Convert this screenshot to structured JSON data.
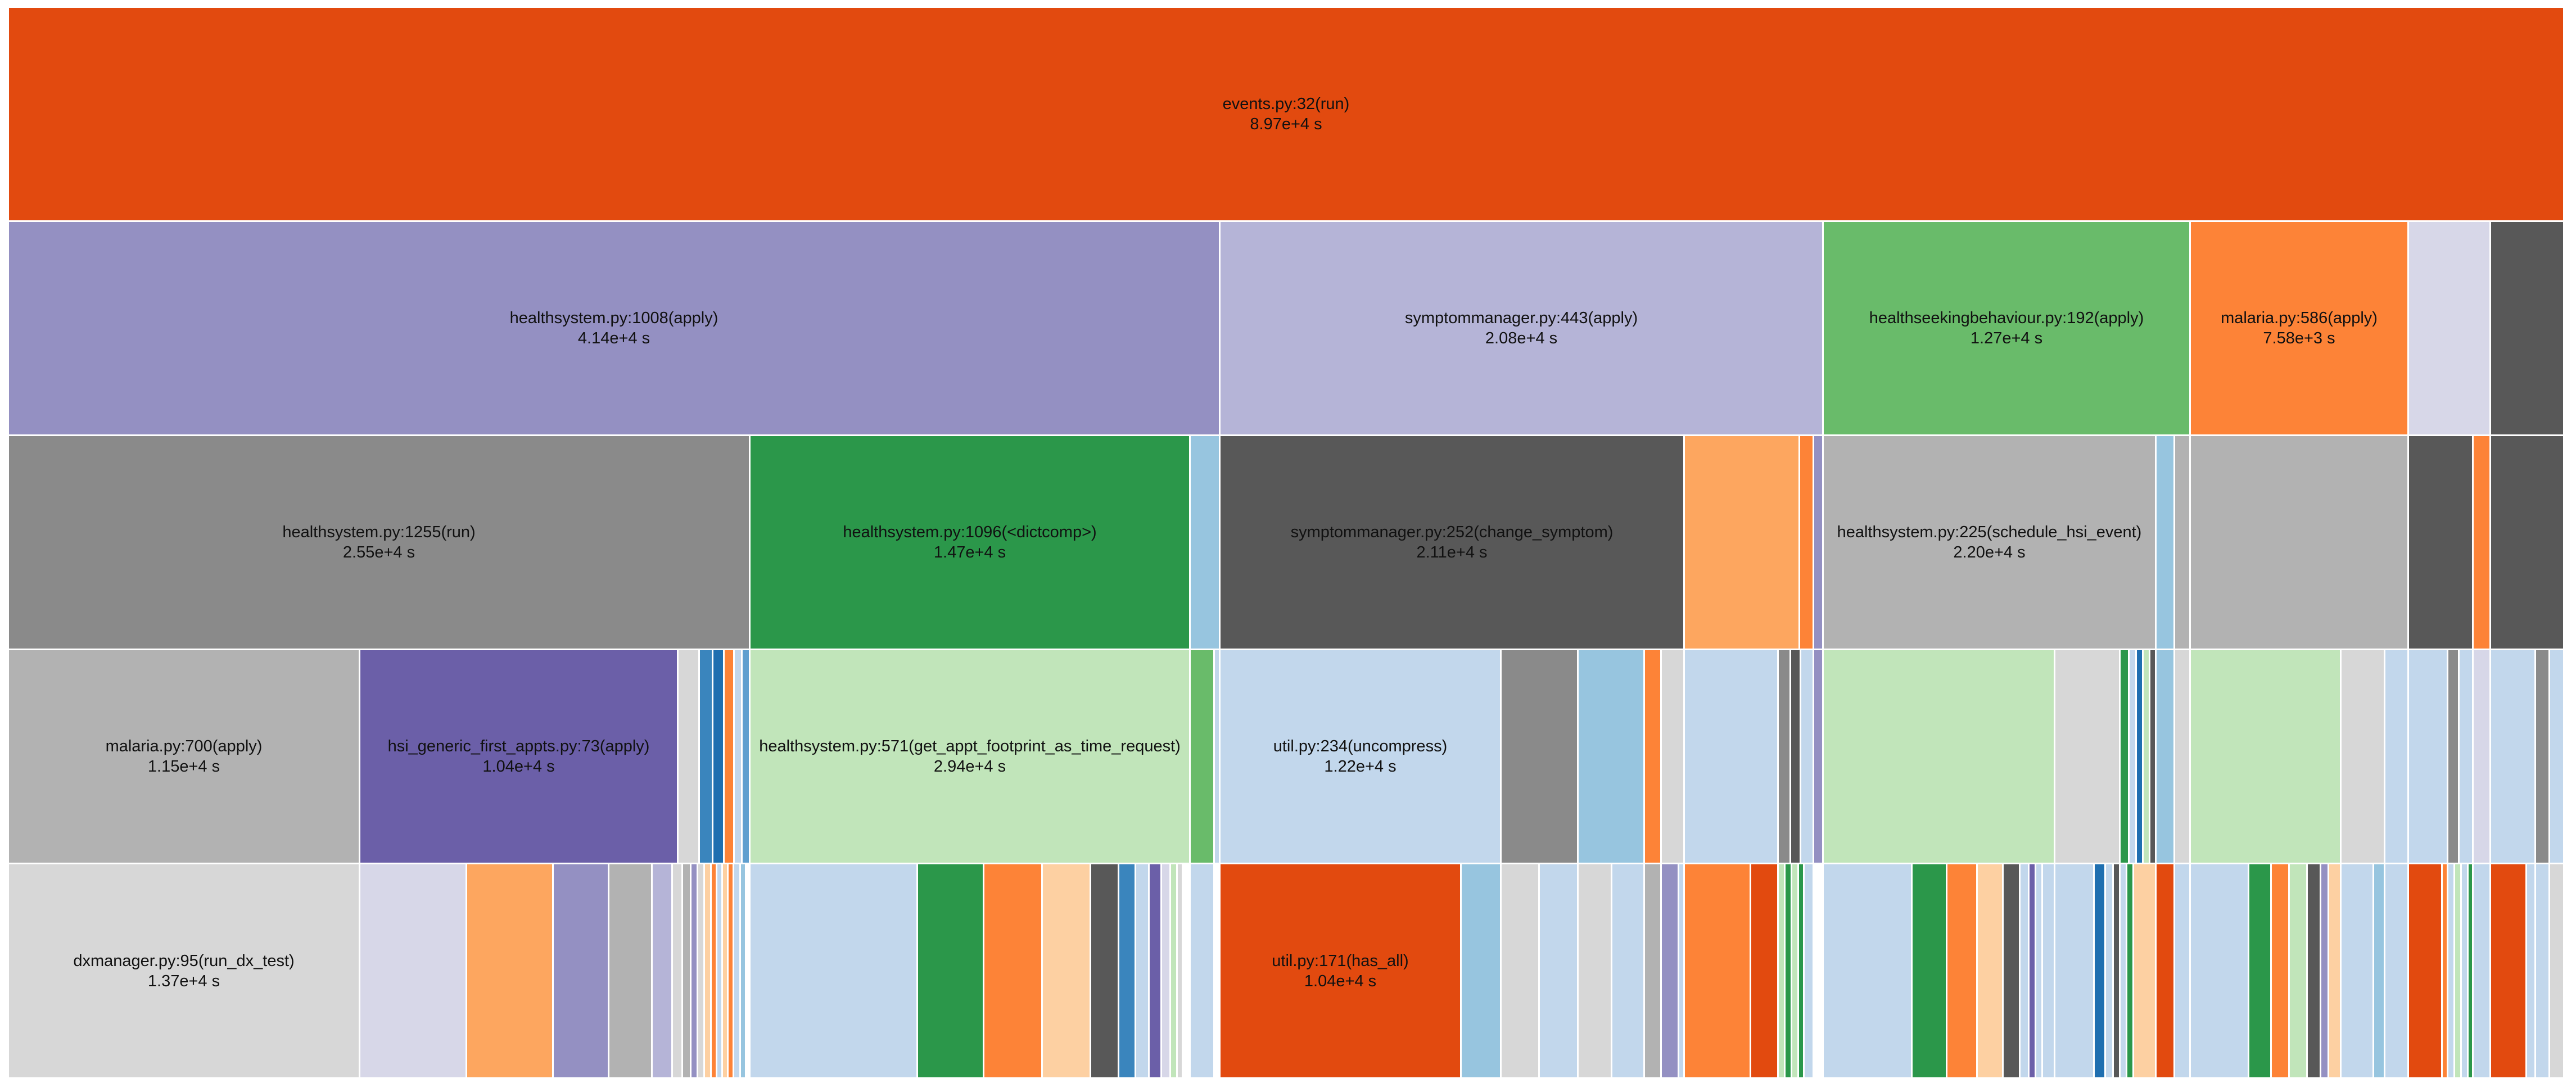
{
  "cells": {
    "events_run": {
      "name": "events.py:32(run)",
      "time": "8.97e+4 s",
      "color": "#e24a0f"
    },
    "hs_apply": {
      "name": "healthsystem.py:1008(apply)",
      "time": "4.14e+4 s",
      "color": "#9490c2"
    },
    "sm_apply": {
      "name": "symptommanager.py:443(apply)",
      "time": "2.08e+4 s",
      "color": "#b5b4d7"
    },
    "hsb_apply": {
      "name": "healthseekingbehaviour.py:192(apply)",
      "time": "1.27e+4 s",
      "color": "#69bb6a"
    },
    "malaria_apply": {
      "name": "malaria.py:586(apply)",
      "time": "7.58e+3 s",
      "color": "#fd8337"
    },
    "hs_run": {
      "name": "healthsystem.py:1255(run)",
      "time": "2.55e+4 s",
      "color": "#8a8a8a"
    },
    "hs_dictcomp": {
      "name": "healthsystem.py:1096(<dictcomp>)",
      "time": "1.47e+4 s",
      "color": "#2b974a"
    },
    "sm_change": {
      "name": "symptommanager.py:252(change_symptom)",
      "time": "2.11e+4 s",
      "color": "#585858"
    },
    "hs_schedule": {
      "name": "healthsystem.py:225(schedule_hsi_event)",
      "time": "2.20e+4 s",
      "color": "#b2b2b2"
    },
    "malaria_700": {
      "name": "malaria.py:700(apply)",
      "time": "1.15e+4 s",
      "color": "#b2b2b2"
    },
    "hsi_generic": {
      "name": "hsi_generic_first_appts.py:73(apply)",
      "time": "1.04e+4 s",
      "color": "#6b5fa8"
    },
    "hs_footprint": {
      "name": "healthsystem.py:571(get_appt_footprint_as_time_request)",
      "time": "2.94e+4 s",
      "color": "#c1e5ba"
    },
    "util_uncompress": {
      "name": "util.py:234(uncompress)",
      "time": "1.22e+4 s",
      "color": "#c2d7ec"
    },
    "dx_run": {
      "name": "dxmanager.py:95(run_dx_test)",
      "time": "1.37e+4 s",
      "color": "#d7d7d7"
    },
    "util_has_all": {
      "name": "util.py:171(has_all)",
      "time": "1.04e+4 s",
      "color": "#e24a0f"
    }
  }
}
